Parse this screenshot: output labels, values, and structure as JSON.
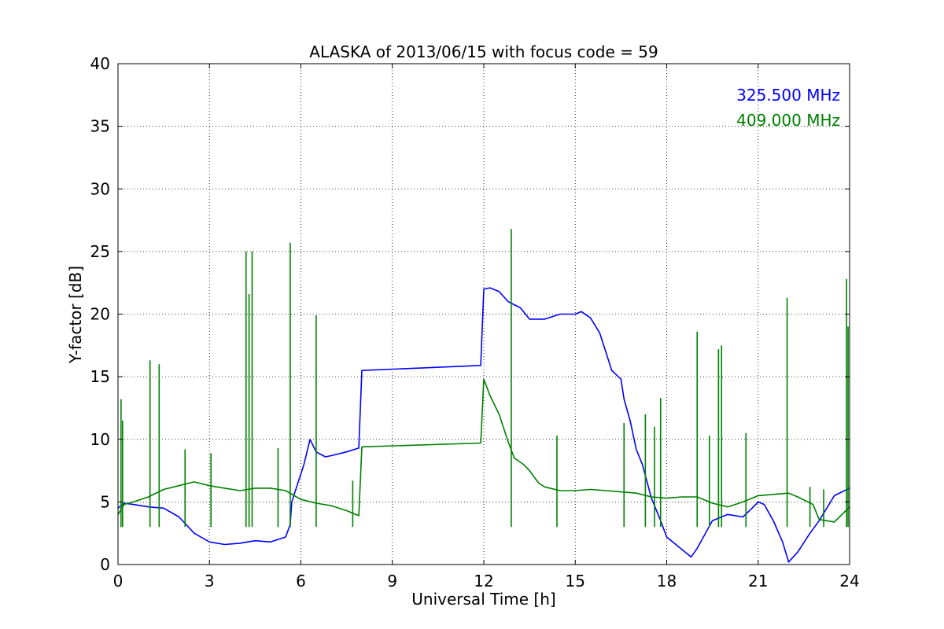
{
  "chart_data": {
    "type": "line",
    "title": "ALASKA of 2013/06/15 with focus code = 59",
    "xlabel": "Universal Time [h]",
    "ylabel": "Y-factor [dB]",
    "xlim": [
      0,
      24
    ],
    "ylim": [
      0,
      40
    ],
    "xticks": [
      0,
      3,
      6,
      9,
      12,
      15,
      18,
      21,
      24
    ],
    "yticks": [
      0,
      5,
      10,
      15,
      20,
      25,
      30,
      35,
      40
    ],
    "grid": true,
    "legend_position": "top-right",
    "series": [
      {
        "name": "325.500 MHz",
        "color": "#0000ff",
        "x": [
          0.0,
          0.2,
          0.5,
          1.0,
          1.5,
          2.0,
          2.5,
          3.0,
          3.5,
          4.0,
          4.5,
          5.0,
          5.5,
          5.65,
          5.7,
          5.9,
          6.1,
          6.3,
          6.5,
          6.8,
          7.0,
          7.5,
          7.9,
          8.0,
          11.9,
          12.0,
          12.2,
          12.5,
          12.8,
          13.2,
          13.5,
          14.0,
          14.5,
          15.0,
          15.2,
          15.5,
          15.8,
          16.0,
          16.2,
          16.5,
          16.6,
          16.8,
          17.0,
          17.2,
          17.5,
          17.8,
          18.0,
          18.5,
          18.8,
          19.0,
          19.5,
          20.0,
          20.5,
          20.8,
          21.0,
          21.2,
          21.5,
          21.8,
          22.0,
          22.3,
          22.7,
          23.0,
          23.5,
          24.0
        ],
        "y": [
          4.5,
          4.9,
          4.8,
          4.6,
          4.5,
          3.8,
          2.5,
          1.8,
          1.6,
          1.7,
          1.9,
          1.8,
          2.2,
          3.2,
          5.0,
          6.5,
          8.0,
          10.0,
          9.0,
          8.6,
          8.7,
          9.0,
          9.3,
          15.5,
          15.9,
          22.0,
          22.1,
          21.8,
          21.0,
          20.5,
          19.6,
          19.6,
          20.0,
          20.0,
          20.2,
          19.7,
          18.5,
          17.0,
          15.5,
          14.8,
          13.2,
          11.5,
          9.2,
          8.0,
          5.3,
          3.5,
          2.2,
          1.2,
          0.6,
          1.3,
          3.5,
          4.0,
          3.8,
          4.5,
          5.0,
          4.8,
          3.5,
          1.8,
          0.2,
          1.0,
          2.5,
          3.5,
          5.5,
          6.1
        ]
      },
      {
        "name": "409.000 MHz",
        "color": "#008000",
        "x": [
          0.0,
          0.2,
          0.5,
          1.0,
          1.5,
          2.0,
          2.5,
          3.0,
          3.5,
          4.0,
          4.5,
          5.0,
          5.5,
          6.0,
          6.5,
          7.0,
          7.5,
          7.9,
          8.0,
          11.9,
          12.0,
          12.2,
          12.5,
          12.8,
          13.0,
          13.3,
          13.5,
          13.8,
          14.0,
          14.5,
          15.0,
          15.5,
          16.0,
          16.5,
          17.0,
          17.5,
          18.0,
          18.5,
          19.0,
          19.5,
          20.0,
          20.5,
          21.0,
          21.5,
          22.0,
          22.3,
          22.8,
          23.0,
          23.5,
          24.0
        ],
        "y": [
          4.0,
          4.8,
          5.0,
          5.4,
          6.0,
          6.3,
          6.6,
          6.3,
          6.1,
          5.9,
          6.1,
          6.1,
          5.9,
          5.2,
          4.9,
          4.7,
          4.3,
          3.9,
          9.4,
          9.7,
          14.8,
          13.5,
          12.0,
          9.8,
          8.5,
          8.0,
          7.5,
          6.5,
          6.2,
          5.9,
          5.9,
          6.0,
          5.9,
          5.8,
          5.7,
          5.4,
          5.3,
          5.4,
          5.4,
          4.9,
          4.6,
          5.0,
          5.5,
          5.6,
          5.7,
          5.4,
          4.8,
          3.6,
          3.4,
          4.6
        ],
        "spikes": [
          {
            "x": 0.1,
            "y": 13.2
          },
          {
            "x": 0.15,
            "y": 11.5
          },
          {
            "x": 1.05,
            "y": 16.3
          },
          {
            "x": 1.35,
            "y": 16.0
          },
          {
            "x": 2.2,
            "y": 9.2
          },
          {
            "x": 3.05,
            "y": 8.9
          },
          {
            "x": 4.2,
            "y": 25.0
          },
          {
            "x": 4.3,
            "y": 21.6
          },
          {
            "x": 4.4,
            "y": 25.0
          },
          {
            "x": 5.25,
            "y": 9.3
          },
          {
            "x": 5.65,
            "y": 25.7
          },
          {
            "x": 6.5,
            "y": 19.9
          },
          {
            "x": 7.7,
            "y": 6.7
          },
          {
            "x": 12.9,
            "y": 26.8
          },
          {
            "x": 14.4,
            "y": 10.3
          },
          {
            "x": 16.6,
            "y": 11.3
          },
          {
            "x": 17.3,
            "y": 12.0
          },
          {
            "x": 17.6,
            "y": 11.0
          },
          {
            "x": 17.8,
            "y": 13.3
          },
          {
            "x": 19.0,
            "y": 18.6
          },
          {
            "x": 19.4,
            "y": 10.3
          },
          {
            "x": 19.7,
            "y": 17.2
          },
          {
            "x": 19.8,
            "y": 17.5
          },
          {
            "x": 20.6,
            "y": 10.5
          },
          {
            "x": 21.95,
            "y": 21.3
          },
          {
            "x": 22.7,
            "y": 6.2
          },
          {
            "x": 23.15,
            "y": 6.0
          },
          {
            "x": 23.9,
            "y": 22.8
          },
          {
            "x": 23.95,
            "y": 19.0
          }
        ]
      }
    ]
  }
}
